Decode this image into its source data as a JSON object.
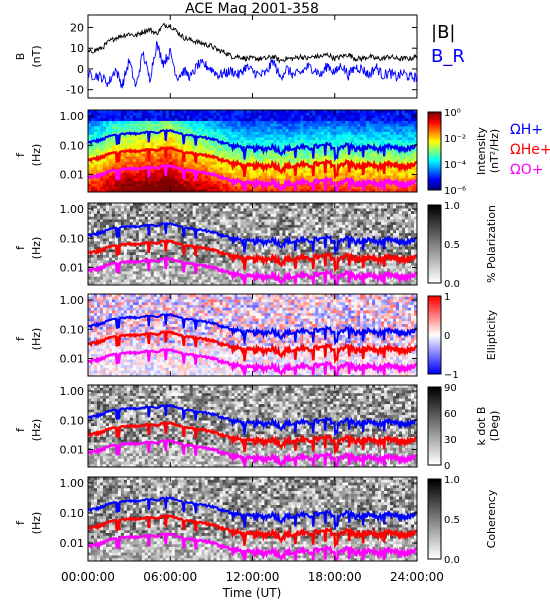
{
  "title": "ACE Mag 2001-358",
  "xlabel": "Time (UT)",
  "x_ticks": [
    "00:00:00",
    "06:00:00",
    "12:00:00",
    "18:00:00",
    "24:00:00"
  ],
  "colors": {
    "b_mag": "#000000",
    "b_r": "#0000ff",
    "omega_h": "#0000ff",
    "omega_he": "#ff0000",
    "omega_o": "#ff00ff"
  },
  "chart_data": [
    {
      "type": "line",
      "ylabel_line1": "B",
      "ylabel_line2": "(nT)",
      "y_ticks": [
        "20",
        "10",
        "0",
        "-10"
      ],
      "ylim": [
        -14,
        26
      ],
      "x": [
        0,
        0.5,
        1,
        1.5,
        2,
        2.5,
        3,
        3.5,
        4,
        4.5,
        5,
        5.5,
        6,
        6.5,
        7,
        7.5,
        8,
        8.5,
        9,
        9.5,
        10,
        10.5,
        11,
        11.5,
        12,
        12.5,
        13,
        13.5,
        14,
        14.5,
        15,
        15.5,
        16,
        16.5,
        17,
        17.5,
        18,
        18.5,
        19,
        19.5,
        20,
        20.5,
        21,
        21.5,
        22,
        22.5,
        23,
        23.5,
        24
      ],
      "series": [
        {
          "name": "|B|",
          "values": [
            8,
            9,
            10,
            13,
            15,
            16,
            17,
            16,
            18,
            19,
            17,
            21,
            21,
            18,
            15,
            14,
            13,
            12,
            11,
            9,
            8,
            6,
            6,
            5,
            5,
            5,
            5,
            6,
            4,
            5,
            5,
            6,
            5,
            6,
            6,
            7,
            5,
            6,
            7,
            5,
            5,
            6,
            5,
            5,
            6,
            5,
            5,
            5,
            6
          ]
        },
        {
          "name": "B_R",
          "values": [
            -3,
            -3,
            -4,
            -7,
            0,
            -8,
            4,
            -9,
            8,
            -5,
            12,
            3,
            8,
            -4,
            -1,
            -4,
            2,
            2,
            0,
            -3,
            -2,
            -1,
            -3,
            1,
            -1,
            -3,
            -2,
            4,
            -4,
            0,
            -3,
            -2,
            1,
            0,
            -3,
            2,
            -2,
            2,
            -3,
            1,
            0,
            -3,
            1,
            -3,
            -2,
            -4,
            -2,
            -4,
            -4
          ]
        }
      ]
    },
    {
      "type": "heatmap",
      "ylabel_line1": "f",
      "ylabel_line2": "(Hz)",
      "y_ticks": [
        "1.00",
        "0.10",
        "0.01"
      ],
      "colorbar_title": "Intensity",
      "colorbar_unit": "(nT²/Hz)",
      "colorbar_ticks": [
        "10⁰",
        "10⁻²",
        "10⁻⁴",
        "10⁻⁶"
      ],
      "legend": [
        "ΩH+",
        "ΩHe+",
        "ΩO+"
      ]
    },
    {
      "type": "heatmap",
      "ylabel_line1": "f",
      "ylabel_line2": "(Hz)",
      "y_ticks": [
        "1.00",
        "0.10",
        "0.01"
      ],
      "colorbar_title": "% Polarization",
      "colorbar_ticks": [
        "1.0",
        "0.5",
        "0.0"
      ]
    },
    {
      "type": "heatmap",
      "ylabel_line1": "f",
      "ylabel_line2": "(Hz)",
      "y_ticks": [
        "1.00",
        "0.10",
        "0.01"
      ],
      "colorbar_title": "Ellipticity",
      "colorbar_ticks": [
        "1",
        "0",
        "−1"
      ]
    },
    {
      "type": "heatmap",
      "ylabel_line1": "f",
      "ylabel_line2": "(Hz)",
      "y_ticks": [
        "1.00",
        "0.10",
        "0.01"
      ],
      "colorbar_title": "k dot B",
      "colorbar_unit": "(Deg)",
      "colorbar_ticks": [
        "90",
        "60",
        "30",
        "0"
      ]
    },
    {
      "type": "heatmap",
      "ylabel_line1": "f",
      "ylabel_line2": "(Hz)",
      "y_ticks": [
        "1.00",
        "0.10",
        "0.01"
      ],
      "colorbar_title": "Coherency",
      "colorbar_ticks": [
        "1.0",
        "0.5",
        "0.0"
      ]
    }
  ]
}
